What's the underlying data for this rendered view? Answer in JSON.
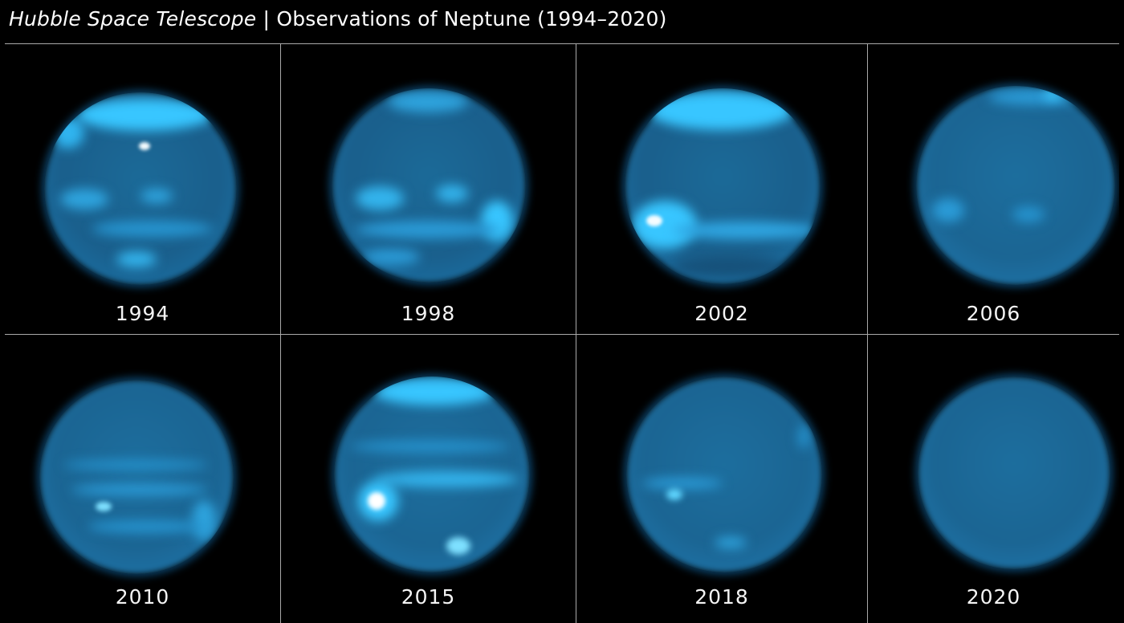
{
  "title": {
    "italic_part": "Hubble Space Telescope",
    "separator": " | ",
    "rest": "Observations of Neptune (1994–2020)"
  },
  "panels": [
    {
      "year": "1994"
    },
    {
      "year": "1998"
    },
    {
      "year": "2002"
    },
    {
      "year": "2006"
    },
    {
      "year": "2010"
    },
    {
      "year": "2015"
    },
    {
      "year": "2018"
    },
    {
      "year": "2020"
    }
  ],
  "colors": {
    "background": "#000000",
    "planet_base": "#1c6e9e",
    "cloud_bright": "#38c8ff",
    "cloud_white": "#f2fbff",
    "divider": "#a9a9a9"
  }
}
